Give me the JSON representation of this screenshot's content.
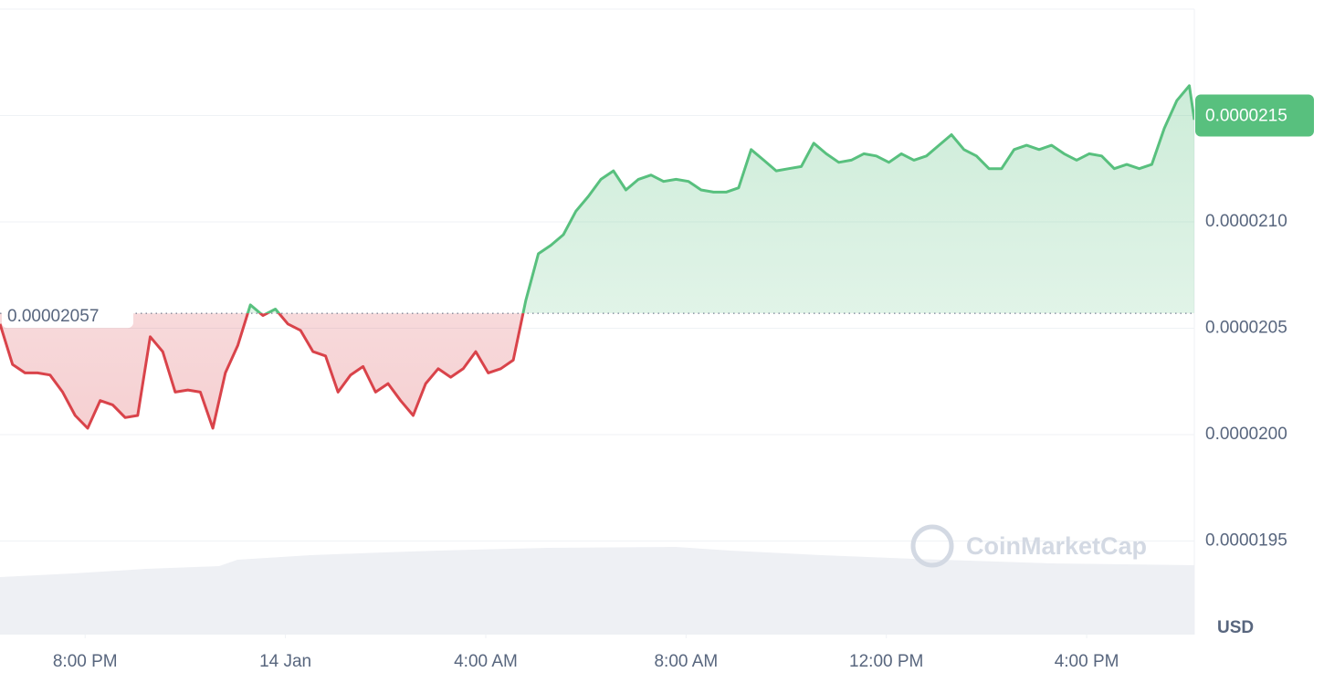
{
  "chart_data": {
    "type": "line",
    "x": [
      18.3,
      18.55,
      18.8,
      19.05,
      19.3,
      19.55,
      19.8,
      20.05,
      20.3,
      20.55,
      20.8,
      21.05,
      21.3,
      21.55,
      21.8,
      22.05,
      22.3,
      22.55,
      22.8,
      23.05,
      23.3,
      23.55,
      23.8,
      24.05,
      24.3,
      24.55,
      24.8,
      25.05,
      25.3,
      25.55,
      25.8,
      26.05,
      26.3,
      26.55,
      26.8,
      27.05,
      27.3,
      27.55,
      27.8,
      28.05,
      28.3,
      28.55,
      28.8,
      29.05,
      29.3,
      29.55,
      29.8,
      30.05,
      30.3,
      30.55,
      30.8,
      31.05,
      31.3,
      31.55,
      31.8,
      32.05,
      32.3,
      32.55,
      32.8,
      33.05,
      33.3,
      33.55,
      33.8,
      34.05,
      34.3,
      34.55,
      34.8,
      35.05,
      35.3,
      35.55,
      35.8,
      36.05,
      36.3,
      36.55,
      36.8,
      37.05,
      37.3,
      37.55,
      37.8,
      38.05,
      38.3,
      38.55,
      38.8,
      39.05,
      39.3,
      39.55,
      39.8,
      40.05,
      40.3,
      40.55,
      40.8,
      41.05,
      41.3,
      41.55,
      41.8,
      42.05,
      42.15
    ],
    "series": [
      {
        "values": [
          2.052e-05,
          2.033e-05,
          2.029e-05,
          2.029e-05,
          2.028e-05,
          2.02e-05,
          2.009e-05,
          2.003e-05,
          2.016e-05,
          2.014e-05,
          2.008e-05,
          2.009e-05,
          2.046e-05,
          2.039e-05,
          2.02e-05,
          2.021e-05,
          2.02e-05,
          2.003e-05,
          2.029e-05,
          2.042e-05,
          2.061e-05,
          2.056e-05,
          2.059e-05,
          2.052e-05,
          2.049e-05,
          2.039e-05,
          2.037e-05,
          2.02e-05,
          2.028e-05,
          2.032e-05,
          2.02e-05,
          2.024e-05,
          2.016e-05,
          2.009e-05,
          2.024e-05,
          2.031e-05,
          2.027e-05,
          2.031e-05,
          2.039e-05,
          2.029e-05,
          2.031e-05,
          2.035e-05,
          2.063e-05,
          2.085e-05,
          2.089e-05,
          2.094e-05,
          2.105e-05,
          2.112e-05,
          2.12e-05,
          2.124e-05,
          2.115e-05,
          2.12e-05,
          2.122e-05,
          2.119e-05,
          2.12e-05,
          2.119e-05,
          2.115e-05,
          2.114e-05,
          2.114e-05,
          2.116e-05,
          2.134e-05,
          2.129e-05,
          2.124e-05,
          2.125e-05,
          2.126e-05,
          2.137e-05,
          2.132e-05,
          2.128e-05,
          2.129e-05,
          2.132e-05,
          2.131e-05,
          2.128e-05,
          2.132e-05,
          2.129e-05,
          2.131e-05,
          2.136e-05,
          2.141e-05,
          2.134e-05,
          2.131e-05,
          2.125e-05,
          2.125e-05,
          2.134e-05,
          2.136e-05,
          2.134e-05,
          2.136e-05,
          2.132e-05,
          2.129e-05,
          2.132e-05,
          2.131e-05,
          2.125e-05,
          2.127e-05,
          2.125e-05,
          2.127e-05,
          2.144e-05,
          2.157e-05,
          2.164e-05,
          2.148e-05
        ]
      }
    ],
    "xlim": [
      18.3,
      42.15
    ],
    "xticks": [
      {
        "value": 20,
        "label": "8:00 PM"
      },
      {
        "value": 24,
        "label": "14 Jan"
      },
      {
        "value": 28,
        "label": "4:00 AM"
      },
      {
        "value": 32,
        "label": "8:00 AM"
      },
      {
        "value": 36,
        "label": "12:00 PM"
      },
      {
        "value": 40,
        "label": "4:00 PM"
      }
    ],
    "ylim": [
      1.906e-05,
      2.2e-05
    ],
    "yticks": [
      1.95e-05,
      {
        "value": 2e-05,
        "label": "0.0000200"
      },
      2.05e-05,
      {
        "value": 2.1e-05,
        "label": "0.0000210"
      },
      2.15e-05
    ],
    "grid": true,
    "baseline": 2.057e-05,
    "current_price": 2.15e-05,
    "color_up": "#58c07e",
    "color_down": "#d9434a",
    "currency": "USD",
    "watermark": "CoinMarketCap"
  }
}
